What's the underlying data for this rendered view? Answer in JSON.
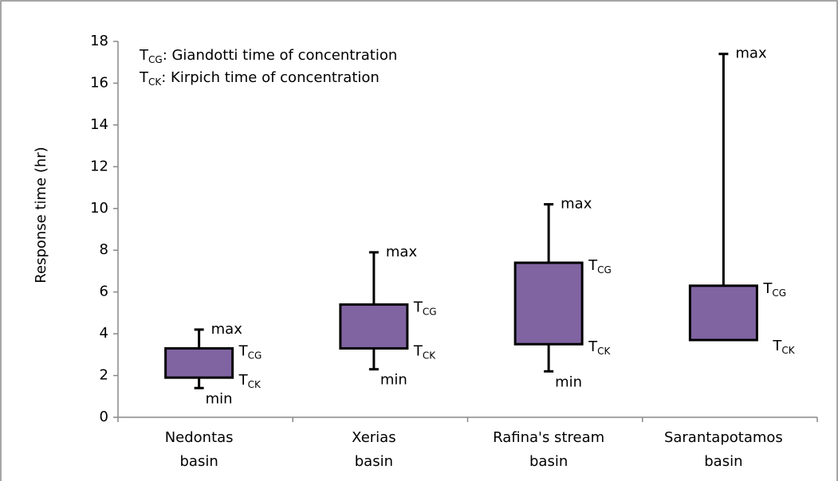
{
  "chart_data": {
    "type": "range-box",
    "y_label": "Response time (hr)",
    "legend": [
      {
        "symbol": "T",
        "subscript": "CG",
        "text": ": Giandotti time of concentration"
      },
      {
        "symbol": "T",
        "subscript": "CK",
        "text": ": Kirpich time of concentration"
      }
    ],
    "point_labels": {
      "max": "max",
      "min": "min"
    },
    "categories": [
      [
        "Nedontas",
        "basin"
      ],
      [
        "Xerias",
        "basin"
      ],
      [
        "Rafina's stream",
        "basin"
      ],
      [
        "Sarantapotamos",
        "basin"
      ]
    ],
    "max": [
      4.2,
      7.9,
      10.2,
      17.4
    ],
    "tcg": [
      3.3,
      5.4,
      7.4,
      6.3
    ],
    "tck": [
      1.9,
      3.3,
      3.5,
      3.7
    ],
    "min": [
      1.4,
      2.3,
      2.2,
      null
    ],
    "color": "#8064a2",
    "ylim": [
      0,
      18
    ],
    "yticks": [
      0,
      2,
      4,
      6,
      8,
      10,
      12,
      14,
      16,
      18
    ]
  }
}
